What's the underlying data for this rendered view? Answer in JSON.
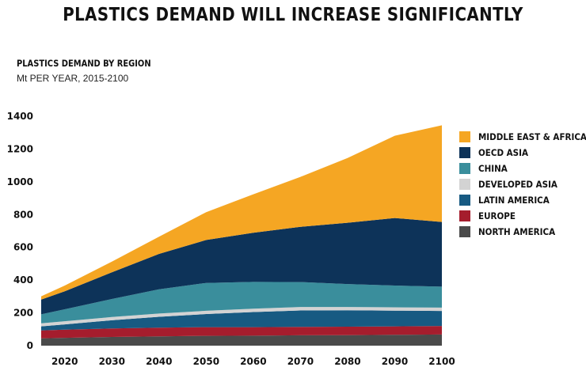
{
  "header": {
    "title": "PLASTICS DEMAND WILL INCREASE SIGNIFICANTLY",
    "subtitle": "PLASTICS DEMAND BY REGION",
    "units": "Mt PER YEAR, 2015-2100"
  },
  "chart_data": {
    "type": "area",
    "stacked": true,
    "title": "PLASTICS DEMAND BY REGION",
    "ylabel": "Mt PER YEAR, 2015-2100",
    "xlabel": "",
    "x": [
      2015,
      2020,
      2030,
      2040,
      2050,
      2060,
      2070,
      2080,
      2090,
      2100
    ],
    "xticks": [
      2020,
      2030,
      2040,
      2050,
      2060,
      2070,
      2080,
      2090,
      2100
    ],
    "xlim": [
      2015,
      2100
    ],
    "ylim": [
      0,
      1400
    ],
    "yticks": [
      0,
      200,
      400,
      600,
      800,
      1000,
      1200,
      1400
    ],
    "grid": false,
    "legend_position": "right",
    "series": [
      {
        "name": "NORTH AMERICA",
        "color": "#4a4a4a",
        "values": [
          45,
          48,
          53,
          57,
          60,
          61,
          63,
          64,
          66,
          68
        ]
      },
      {
        "name": "EUROPE",
        "color": "#a51d2d",
        "values": [
          48,
          50,
          52,
          53,
          53,
          52,
          52,
          52,
          52,
          52
        ]
      },
      {
        "name": "LATIN AMERICA",
        "color": "#175a82",
        "values": [
          25,
          32,
          50,
          66,
          80,
          92,
          100,
          100,
          96,
          92
        ]
      },
      {
        "name": "DEVELOPED ASIA",
        "color": "#d3d3d3",
        "values": [
          18,
          19,
          20,
          20,
          20,
          21,
          21,
          20,
          20,
          20
        ]
      },
      {
        "name": "CHINA",
        "color": "#3a8e9c",
        "values": [
          55,
          73,
          110,
          148,
          170,
          163,
          152,
          140,
          133,
          128
        ]
      },
      {
        "name": "OECD ASIA",
        "color": "#0d3359",
        "values": [
          90,
          110,
          163,
          216,
          262,
          300,
          337,
          374,
          412,
          395
        ]
      },
      {
        "name": "MIDDLE EAST & AFRICA",
        "color": "#f5a623",
        "values": [
          20,
          35,
          65,
          105,
          170,
          235,
          305,
          395,
          502,
          590
        ]
      }
    ]
  }
}
